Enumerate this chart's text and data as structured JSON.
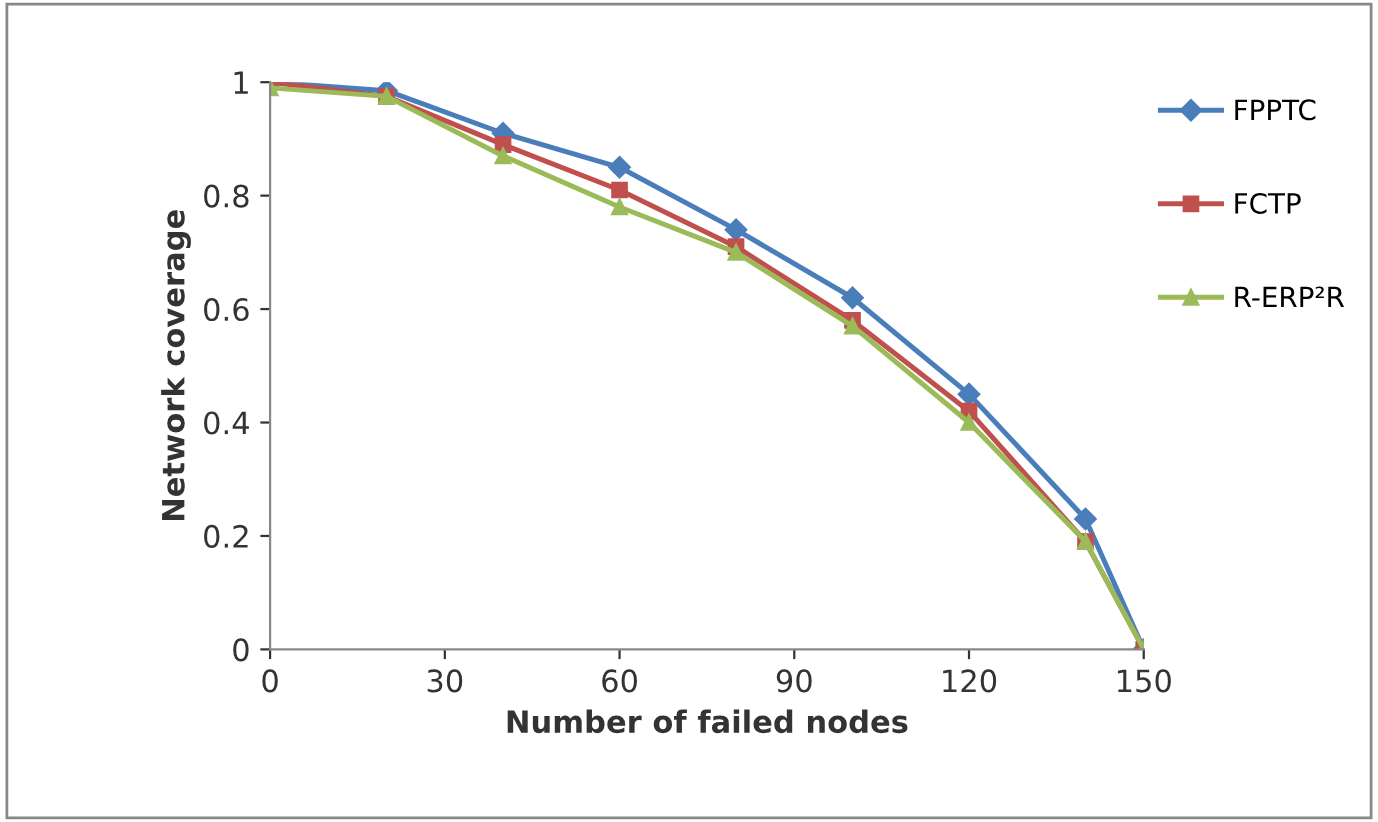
{
  "chart_data": {
    "type": "line",
    "xlabel": "Number of failed nodes",
    "ylabel": "Network coverage",
    "x": [
      0,
      20,
      40,
      60,
      80,
      100,
      120,
      140,
      150
    ],
    "series": [
      {
        "name": "FPPTC",
        "color": "#4a7ebb",
        "marker": "diamond",
        "values": [
          1.0,
          0.985,
          0.91,
          0.85,
          0.74,
          0.62,
          0.45,
          0.23,
          0
        ]
      },
      {
        "name": "FCTP",
        "color": "#c0504d",
        "marker": "square",
        "values": [
          1.0,
          0.975,
          0.89,
          0.81,
          0.71,
          0.58,
          0.42,
          0.19,
          0
        ]
      },
      {
        "name": "R-ERP²R",
        "color": "#9bbb59",
        "marker": "triangle",
        "values": [
          0.99,
          0.975,
          0.87,
          0.78,
          0.7,
          0.57,
          0.4,
          0.19,
          0
        ]
      }
    ],
    "xlim": [
      0,
      150
    ],
    "xticks": [
      0,
      30,
      60,
      90,
      120,
      150
    ],
    "ylim": [
      0,
      1
    ],
    "yticks": [
      0,
      0.2,
      0.4,
      0.6,
      0.8,
      1
    ],
    "grid": false,
    "legend": "right"
  }
}
